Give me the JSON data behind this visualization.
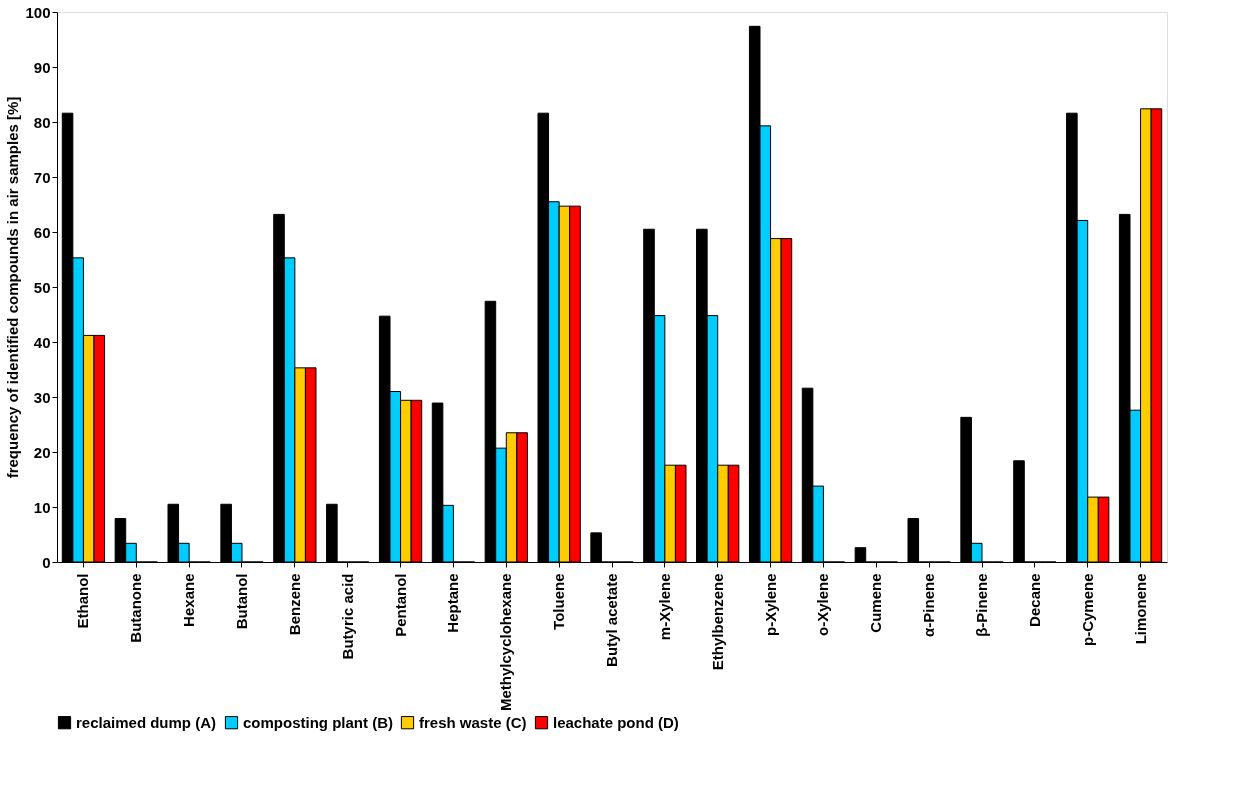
{
  "chart_data": {
    "type": "bar",
    "categories": [
      "Ethanol",
      "Butanone",
      "Hexane",
      "Butanol",
      "Benzene",
      "Butyric acid",
      "Pentanol",
      "Heptane",
      "Methylcyclohexane",
      "Toluene",
      "Butyl acetate",
      "m-Xylene",
      "Ethylbenzene",
      "p-Xylene",
      "o-Xylene",
      "Cumene",
      "α-Pinene",
      "β-Pinene",
      "Decane",
      "p-Cymene",
      "Limonene"
    ],
    "ylabel": "frequency of identified compounds in air samples  [%]",
    "ylim": [
      0,
      100
    ],
    "yticks": [
      0,
      10,
      20,
      30,
      40,
      50,
      60,
      70,
      80,
      90,
      100
    ],
    "grid": false,
    "legend": "bottom",
    "series": [
      {
        "name": "reclaimed dump (A)",
        "color": "#000000",
        "values": [
          81.6,
          7.9,
          10.5,
          10.5,
          63.2,
          10.5,
          44.7,
          28.9,
          47.4,
          81.6,
          5.3,
          60.5,
          60.5,
          97.4,
          31.6,
          2.6,
          7.9,
          26.3,
          18.4,
          81.6,
          63.2
        ]
      },
      {
        "name": "composting plant (B)",
        "color": "#00ccff",
        "values": [
          55.3,
          3.4,
          3.4,
          3.4,
          55.3,
          0,
          31.0,
          10.3,
          20.7,
          65.5,
          0,
          44.8,
          44.8,
          79.3,
          13.8,
          0,
          0,
          3.4,
          0,
          62.1,
          27.6
        ]
      },
      {
        "name": "fresh waste (C)",
        "color": "#ffcc00",
        "values": [
          41.2,
          0,
          0,
          0,
          35.3,
          0,
          29.4,
          0,
          23.5,
          64.7,
          0,
          17.6,
          17.6,
          58.8,
          0,
          0,
          0,
          0,
          0,
          11.8,
          82.4
        ]
      },
      {
        "name": "leachate pond (D)",
        "color": "#ff0000",
        "values": [
          41.2,
          0,
          0,
          0,
          35.3,
          0,
          29.4,
          0,
          23.5,
          64.7,
          0,
          17.6,
          17.6,
          58.8,
          0,
          0,
          0,
          0,
          0,
          11.8,
          82.4
        ]
      }
    ]
  }
}
